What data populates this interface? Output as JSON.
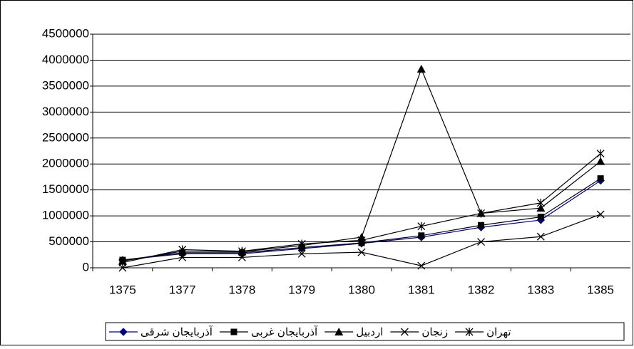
{
  "chart_data": {
    "type": "line",
    "categories": [
      "1375",
      "1377",
      "1378",
      "1379",
      "1380",
      "1381",
      "1382",
      "1383",
      "1385"
    ],
    "series": [
      {
        "name": "آذربایجان شرقی",
        "color": "#000080",
        "marker": "diamond",
        "values": [
          150000,
          270000,
          270000,
          370000,
          470000,
          590000,
          780000,
          920000,
          1680000
        ]
      },
      {
        "name": "آذربایجان غربی",
        "color": "#000000",
        "marker": "square",
        "values": [
          150000,
          290000,
          290000,
          390000,
          480000,
          620000,
          820000,
          980000,
          1720000
        ]
      },
      {
        "name": "اردبیل",
        "color": "#000000",
        "marker": "triangle",
        "values": [
          130000,
          320000,
          310000,
          430000,
          590000,
          3830000,
          1050000,
          1150000,
          2050000
        ]
      },
      {
        "name": "زنجان",
        "color": "#000000",
        "marker": "x",
        "values": [
          0,
          200000,
          200000,
          270000,
          300000,
          40000,
          500000,
          600000,
          1030000
        ]
      },
      {
        "name": "تهران",
        "color": "#000000",
        "marker": "star",
        "values": [
          100000,
          350000,
          320000,
          460000,
          530000,
          800000,
          1050000,
          1250000,
          2200000
        ]
      }
    ],
    "ylim": [
      0,
      4500000
    ],
    "yticks": [
      0,
      500000,
      1000000,
      1500000,
      2000000,
      2500000,
      3000000,
      3500000,
      4000000,
      4500000
    ],
    "grid": true,
    "legend": "bottom"
  }
}
